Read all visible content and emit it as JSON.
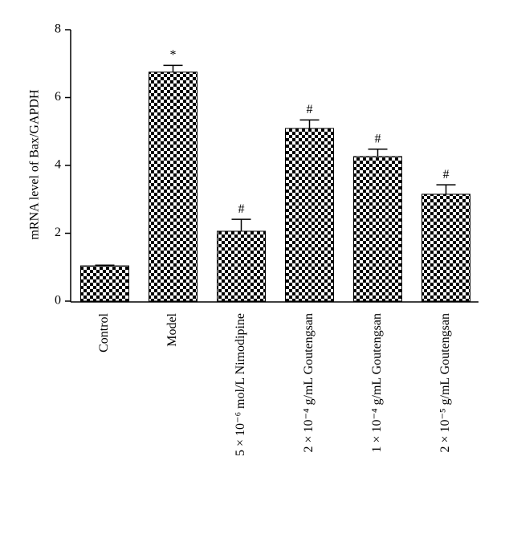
{
  "chart_data": {
    "type": "bar",
    "ylabel": "mRNA level of Bax/GAPDH",
    "categories": [
      "Control",
      "Model",
      "5 × 10⁻⁶ mol/L Nimodipine",
      "2 × 10⁻⁴ g/mL Goutengsan",
      "1 × 10⁻⁴ g/mL Goutengsan",
      "2 × 10⁻⁵ g/mL Goutengsan"
    ],
    "values": [
      1.04,
      6.75,
      2.06,
      5.09,
      4.26,
      3.15
    ],
    "errors": [
      0.02,
      0.2,
      0.35,
      0.25,
      0.22,
      0.28
    ],
    "annotations": [
      null,
      "*",
      "#",
      "#",
      "#",
      "#"
    ],
    "color": "#000000",
    "ylim": [
      0,
      8
    ],
    "yticks": [
      0,
      2,
      4,
      6,
      8
    ]
  }
}
